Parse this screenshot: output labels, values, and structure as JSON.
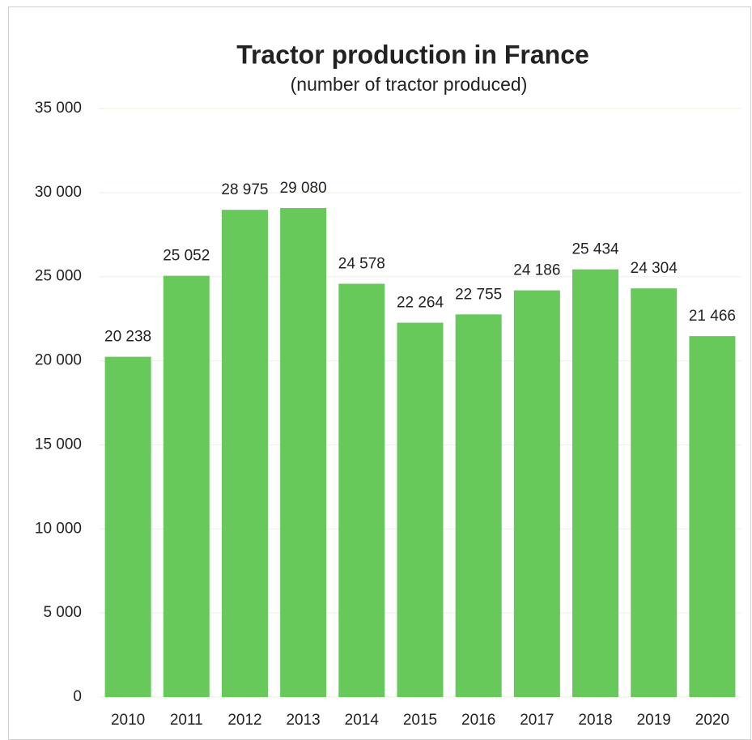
{
  "chart_data": {
    "type": "bar",
    "title": "Tractor production in France",
    "subtitle": "(number of tractor produced)",
    "categories": [
      "2010",
      "2011",
      "2012",
      "2013",
      "2014",
      "2015",
      "2016",
      "2017",
      "2018",
      "2019",
      "2020"
    ],
    "values": [
      20238,
      25052,
      28975,
      29080,
      24578,
      22264,
      22755,
      24186,
      25434,
      24304,
      21466
    ],
    "value_labels": [
      "20 238",
      "25 052",
      "28 975",
      "29 080",
      "24 578",
      "22 264",
      "22 755",
      "24 186",
      "25 434",
      "24 304",
      "21 466"
    ],
    "color": "#66c95a",
    "ylim": [
      0,
      35000
    ],
    "yticks": [
      {
        "value": 0,
        "label": "0"
      },
      {
        "value": 5000,
        "label": "5 000"
      },
      {
        "value": 10000,
        "label": "10 000"
      },
      {
        "value": 15000,
        "label": "15 000"
      },
      {
        "value": 20000,
        "label": "20 000"
      },
      {
        "value": 25000,
        "label": "25 000"
      },
      {
        "value": 30000,
        "label": "30 000"
      },
      {
        "value": 35000,
        "label": "35 000"
      }
    ],
    "grid": true
  }
}
